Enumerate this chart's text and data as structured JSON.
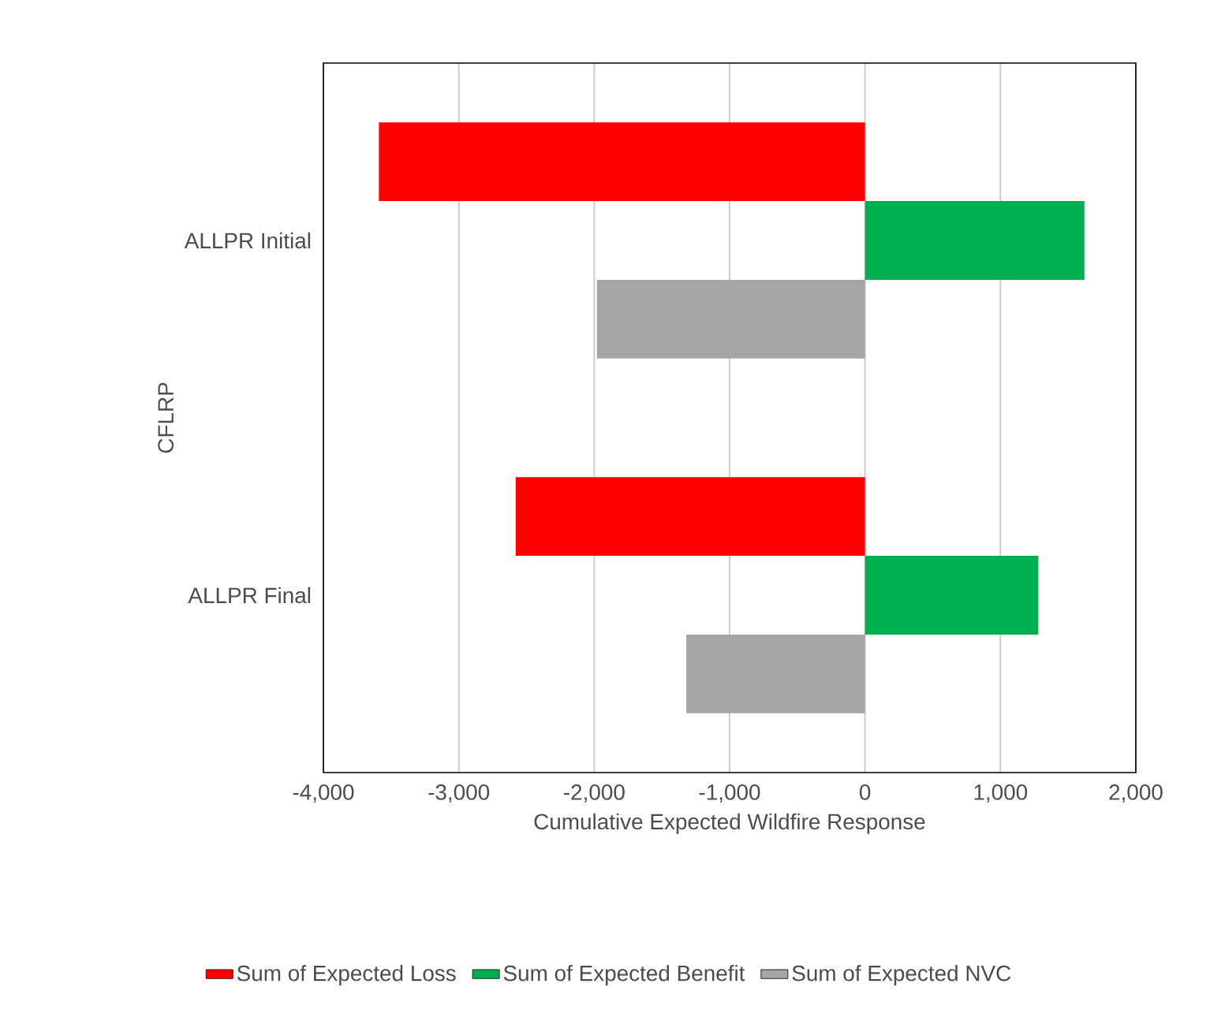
{
  "chart_data": {
    "type": "bar",
    "orientation": "horizontal",
    "xlabel": "Cumulative Expected Wildfire Response",
    "ylabel": "CFLRP",
    "categories": [
      "ALLPR Initial",
      "ALLPR Final"
    ],
    "series": [
      {
        "name": "Sum of Expected Loss",
        "color": "#ff0000",
        "values": [
          -3590,
          -2580
        ]
      },
      {
        "name": "Sum of Expected Benefit",
        "color": "#00b050",
        "values": [
          1620,
          1280
        ]
      },
      {
        "name": "Sum of Expected NVC",
        "color": "#a5a5a5",
        "values": [
          -1980,
          -1320
        ]
      }
    ],
    "xlim": [
      -4000,
      2000
    ],
    "xticks": [
      {
        "value": -4000,
        "label": "-4,000"
      },
      {
        "value": -3000,
        "label": "-3,000"
      },
      {
        "value": -2000,
        "label": "-2,000"
      },
      {
        "value": -1000,
        "label": "-1,000"
      },
      {
        "value": 0,
        "label": "0"
      },
      {
        "value": 1000,
        "label": "1,000"
      },
      {
        "value": 2000,
        "label": "2,000"
      }
    ],
    "grid": "x",
    "legend": "bottom"
  }
}
